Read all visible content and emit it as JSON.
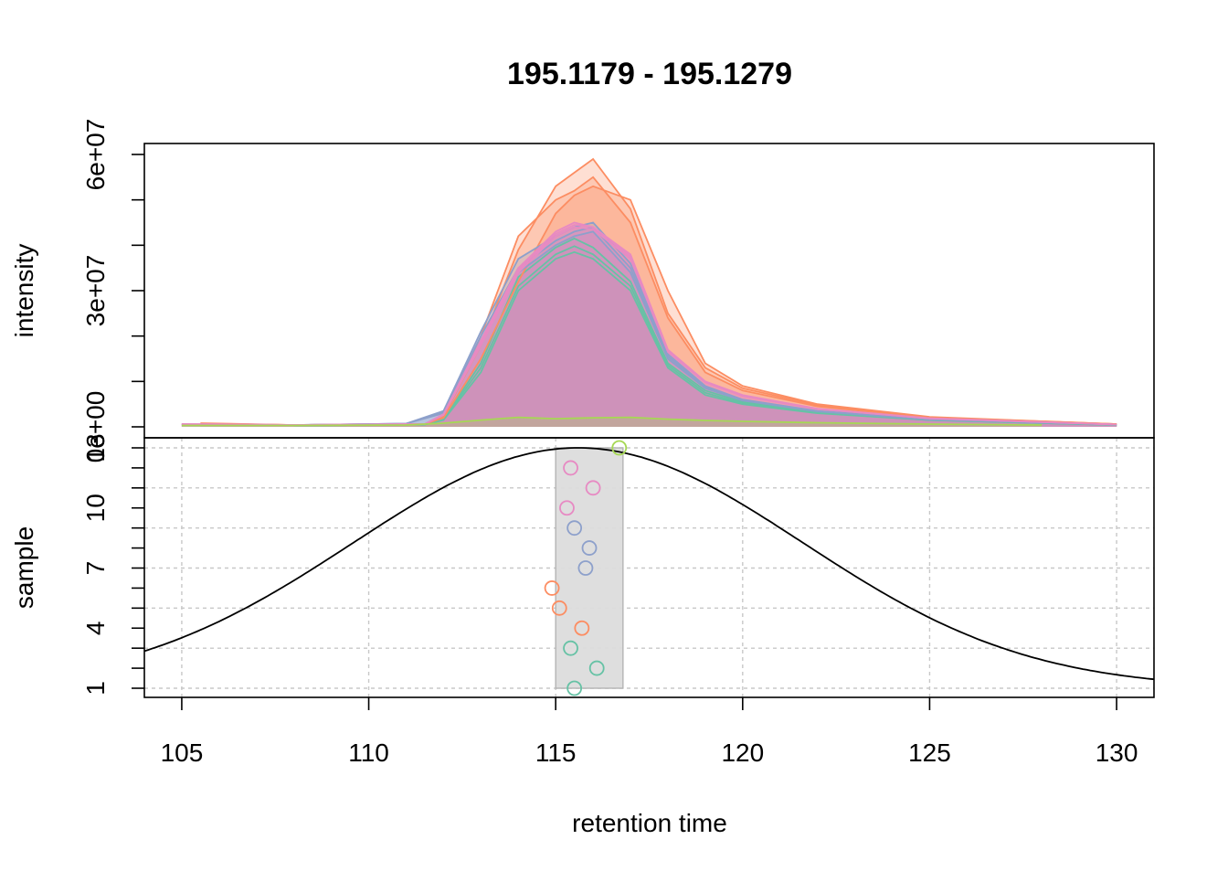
{
  "chart_data": [
    {
      "type": "area",
      "title": "195.1179 - 195.1279",
      "ylabel": "intensity",
      "xlim": [
        104,
        131
      ],
      "ylim": [
        0,
        61000000
      ],
      "y_tick_values": [
        0,
        30000000,
        60000000
      ],
      "y_tick_labels": [
        "0e+00",
        "3e+07",
        "6e+07"
      ],
      "series": [
        {
          "group": "Set2-1",
          "color": "#66C2A5",
          "x": [
            108.0,
            111.5,
            112.0,
            113.0,
            114.0,
            115.0,
            115.5,
            116.0,
            117.0,
            118.0,
            119.0,
            120.0,
            122.0,
            125.0,
            130.0
          ],
          "values": [
            300000,
            500000,
            1500000,
            12000000,
            30000000,
            37000000,
            38500000,
            37000000,
            30000000,
            13000000,
            7000000,
            5000000,
            3000000,
            1500000,
            400000
          ]
        },
        {
          "group": "Set2-1",
          "color": "#66C2A5",
          "x": [
            108.0,
            111.5,
            112.0,
            113.0,
            114.0,
            115.0,
            115.5,
            116.0,
            117.0,
            118.0,
            119.0,
            120.0,
            122.0,
            125.0,
            130.0
          ],
          "values": [
            300000,
            500000,
            1800000,
            14000000,
            33000000,
            39500000,
            41500000,
            39500000,
            32000000,
            14000000,
            8000000,
            5500000,
            3200000,
            1600000,
            400000
          ]
        },
        {
          "group": "Set2-1",
          "color": "#66C2A5",
          "x": [
            108.0,
            111.5,
            112.0,
            113.0,
            114.0,
            115.0,
            115.5,
            116.0,
            117.0,
            118.0,
            119.0,
            120.0,
            122.0,
            125.0,
            130.0
          ],
          "values": [
            300000,
            500000,
            1600000,
            13000000,
            31000000,
            38000000,
            39800000,
            38000000,
            31000000,
            13500000,
            7500000,
            5200000,
            3100000,
            1500000,
            400000
          ]
        },
        {
          "group": "Set2-2",
          "color": "#FC8D62",
          "x": [
            105.5,
            108.0,
            111.5,
            112.0,
            113.0,
            114.0,
            115.0,
            115.5,
            116.0,
            117.0,
            118.0,
            119.0,
            120.0,
            122.0,
            125.0,
            130.0
          ],
          "values": [
            800000,
            400000,
            600000,
            2500000,
            20000000,
            42000000,
            50000000,
            52000000,
            55000000,
            45000000,
            24000000,
            12000000,
            8000000,
            4500000,
            2000000,
            600000
          ]
        },
        {
          "group": "Set2-2",
          "color": "#FC8D62",
          "x": [
            105.5,
            108.0,
            111.5,
            112.0,
            113.0,
            114.0,
            115.0,
            115.5,
            116.0,
            117.0,
            118.0,
            119.0,
            120.0,
            122.0,
            125.0,
            130.0
          ],
          "values": [
            700000,
            400000,
            600000,
            2300000,
            18000000,
            39000000,
            53000000,
            56000000,
            59000000,
            48000000,
            25000000,
            13000000,
            8500000,
            4800000,
            2100000,
            600000
          ]
        },
        {
          "group": "Set2-2",
          "color": "#FC8D62",
          "x": [
            105.5,
            108.0,
            111.5,
            112.0,
            113.0,
            114.0,
            115.0,
            115.5,
            116.0,
            117.0,
            118.0,
            119.0,
            120.0,
            122.0,
            125.0,
            130.0
          ],
          "values": [
            700000,
            400000,
            600000,
            2000000,
            15000000,
            32000000,
            47000000,
            51000000,
            53000000,
            50000000,
            30000000,
            14000000,
            9000000,
            5000000,
            2200000,
            600000
          ]
        },
        {
          "group": "Set2-3",
          "color": "#8DA0CB",
          "x": [
            105.0,
            108.0,
            111.0,
            112.0,
            113.0,
            114.0,
            115.0,
            115.5,
            116.0,
            117.0,
            118.0,
            119.0,
            120.0,
            122.0,
            125.0,
            130.0
          ],
          "values": [
            500000,
            400000,
            700000,
            3500000,
            21000000,
            37000000,
            42000000,
            44000000,
            45000000,
            36000000,
            16000000,
            9000000,
            6000000,
            3500000,
            1700000,
            500000
          ]
        },
        {
          "group": "Set2-3",
          "color": "#8DA0CB",
          "x": [
            105.0,
            108.0,
            111.0,
            112.0,
            113.0,
            114.0,
            115.0,
            115.5,
            116.0,
            117.0,
            118.0,
            119.0,
            120.0,
            122.0,
            125.0,
            130.0
          ],
          "values": [
            500000,
            400000,
            700000,
            3000000,
            19000000,
            34000000,
            40000000,
            42000000,
            43000000,
            34000000,
            15000000,
            8500000,
            5800000,
            3400000,
            1600000,
            500000
          ]
        },
        {
          "group": "Set2-3",
          "color": "#8DA0CB",
          "x": [
            105.0,
            108.0,
            111.0,
            112.0,
            113.0,
            114.0,
            115.0,
            115.5,
            116.0,
            117.0,
            118.0,
            119.0,
            120.0,
            122.0,
            125.0,
            130.0
          ],
          "values": [
            500000,
            400000,
            700000,
            3200000,
            20000000,
            35000000,
            41000000,
            43000000,
            44000000,
            35000000,
            15500000,
            8800000,
            5900000,
            3450000,
            1650000,
            500000
          ]
        },
        {
          "group": "Set2-4",
          "color": "#E78AC3",
          "x": [
            105.0,
            108.0,
            111.5,
            112.0,
            113.0,
            114.0,
            115.0,
            115.5,
            116.0,
            117.0,
            118.0,
            119.0,
            120.0,
            122.0,
            125.0,
            130.0
          ],
          "values": [
            600000,
            400000,
            600000,
            2800000,
            19000000,
            35000000,
            43000000,
            45000000,
            44000000,
            38000000,
            17000000,
            10000000,
            7000000,
            4000000,
            1900000,
            500000
          ]
        },
        {
          "group": "Set2-4",
          "color": "#E78AC3",
          "x": [
            105.0,
            108.0,
            111.5,
            112.0,
            113.0,
            114.0,
            115.0,
            115.5,
            116.0,
            117.0,
            118.0,
            119.0,
            120.0,
            122.0,
            125.0,
            130.0
          ],
          "values": [
            600000,
            400000,
            600000,
            2600000,
            18000000,
            34000000,
            42000000,
            44000000,
            43500000,
            37000000,
            16500000,
            9800000,
            6800000,
            3900000,
            1850000,
            500000
          ]
        },
        {
          "group": "Set2-4",
          "color": "#E78AC3",
          "x": [
            105.0,
            108.0,
            111.5,
            112.0,
            113.0,
            114.0,
            115.0,
            115.5,
            116.0,
            117.0,
            118.0,
            119.0,
            120.0,
            122.0,
            125.0,
            130.0
          ],
          "values": [
            600000,
            400000,
            600000,
            2700000,
            18500000,
            34500000,
            42500000,
            44500000,
            44000000,
            37500000,
            16800000,
            9900000,
            6900000,
            3950000,
            1880000,
            500000
          ]
        },
        {
          "group": "Set2-5",
          "color": "#A6D854",
          "x": [
            105.0,
            108.0,
            111.0,
            112.0,
            113.0,
            114.0,
            115.0,
            116.0,
            117.0,
            118.0,
            119.0,
            120.0,
            122.0,
            125.0,
            128.0
          ],
          "values": [
            300000,
            300000,
            400000,
            800000,
            1500000,
            2100000,
            1800000,
            2000000,
            2100000,
            1700000,
            1400000,
            1200000,
            900000,
            600000,
            400000
          ]
        }
      ]
    },
    {
      "type": "scatter",
      "xlabel": "retention time",
      "ylabel": "sample",
      "xlim": [
        104,
        131
      ],
      "ylim": [
        1,
        13
      ],
      "x_tick_values": [
        105,
        110,
        115,
        120,
        125,
        130
      ],
      "y_tick_values": [
        1,
        4,
        7,
        10,
        13
      ],
      "y_tick_labels": [
        "1",
        "4",
        "7",
        "10",
        "13"
      ],
      "highlight_x_range": [
        115.0,
        116.8
      ],
      "curve": {
        "type": "gaussian",
        "center": 115.6,
        "sd": 6.0,
        "y_min": 1,
        "y_max": 13
      },
      "points": [
        {
          "sample": 1,
          "x": 115.5,
          "color": "#66C2A5"
        },
        {
          "sample": 2,
          "x": 116.1,
          "color": "#66C2A5"
        },
        {
          "sample": 3,
          "x": 115.4,
          "color": "#66C2A5"
        },
        {
          "sample": 4,
          "x": 115.7,
          "color": "#FC8D62"
        },
        {
          "sample": 5,
          "x": 115.1,
          "color": "#FC8D62"
        },
        {
          "sample": 6,
          "x": 114.9,
          "color": "#FC8D62"
        },
        {
          "sample": 7,
          "x": 115.8,
          "color": "#8DA0CB"
        },
        {
          "sample": 8,
          "x": 115.9,
          "color": "#8DA0CB"
        },
        {
          "sample": 9,
          "x": 115.5,
          "color": "#8DA0CB"
        },
        {
          "sample": 10,
          "x": 115.3,
          "color": "#E78AC3"
        },
        {
          "sample": 11,
          "x": 116.0,
          "color": "#E78AC3"
        },
        {
          "sample": 12,
          "x": 115.4,
          "color": "#E78AC3"
        },
        {
          "sample": 13,
          "x": 116.7,
          "color": "#A6D854"
        }
      ]
    }
  ]
}
